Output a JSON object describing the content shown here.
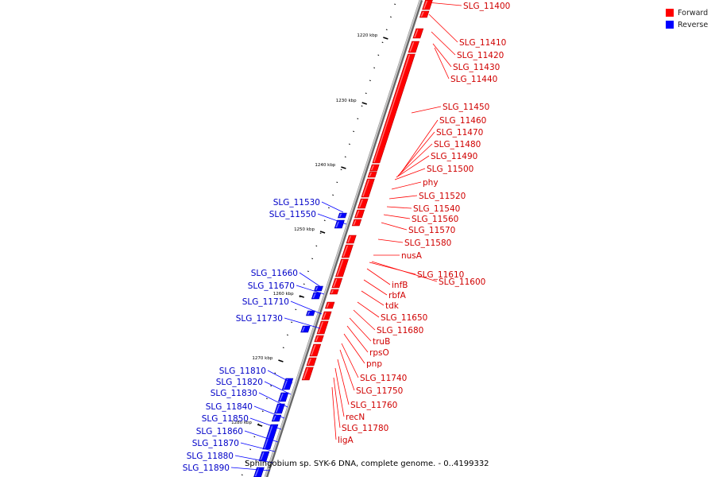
{
  "colors": {
    "forward": "#ff0000",
    "reverse": "#0000ff",
    "backbone": "#999999"
  },
  "legend": [
    {
      "label": "Forward",
      "color": "#ff0000"
    },
    {
      "label": "Reverse",
      "color": "#0000ff"
    }
  ],
  "caption": "Sphingobium sp. SYK-6 DNA, complete genome. - 0..4199332",
  "ticks": [
    "1220 kbp",
    "1230 kbp",
    "1240 kbp",
    "1250 kbp",
    "1260 kbp",
    "1270 kbp",
    "1280 kbp"
  ],
  "forward_genes": [
    "SLG_11400",
    "SLG_11410",
    "SLG_11420",
    "SLG_11430",
    "SLG_11440",
    "SLG_11450",
    "SLG_11460",
    "SLG_11470",
    "SLG_11480",
    "SLG_11490",
    "SLG_11500",
    "phy",
    "SLG_11520",
    "SLG_11540",
    "SLG_11560",
    "SLG_11570",
    "SLG_11580",
    "nusA",
    "SLG_11610",
    "SLG_11600",
    "infB",
    "rbfA",
    "tdk",
    "SLG_11650",
    "SLG_11680",
    "truB",
    "rpsO",
    "pnp",
    "SLG_11740",
    "SLG_11750",
    "SLG_11760",
    "recN",
    "SLG_11780",
    "ligA"
  ],
  "reverse_genes": [
    "SLG_11530",
    "SLG_11550",
    "SLG_11660",
    "SLG_11670",
    "SLG_11710",
    "SLG_11730",
    "SLG_11810",
    "SLG_11820",
    "SLG_11830",
    "SLG_11840",
    "SLG_11850",
    "SLG_11860",
    "SLG_11870",
    "SLG_11880",
    "SLG_11890"
  ]
}
